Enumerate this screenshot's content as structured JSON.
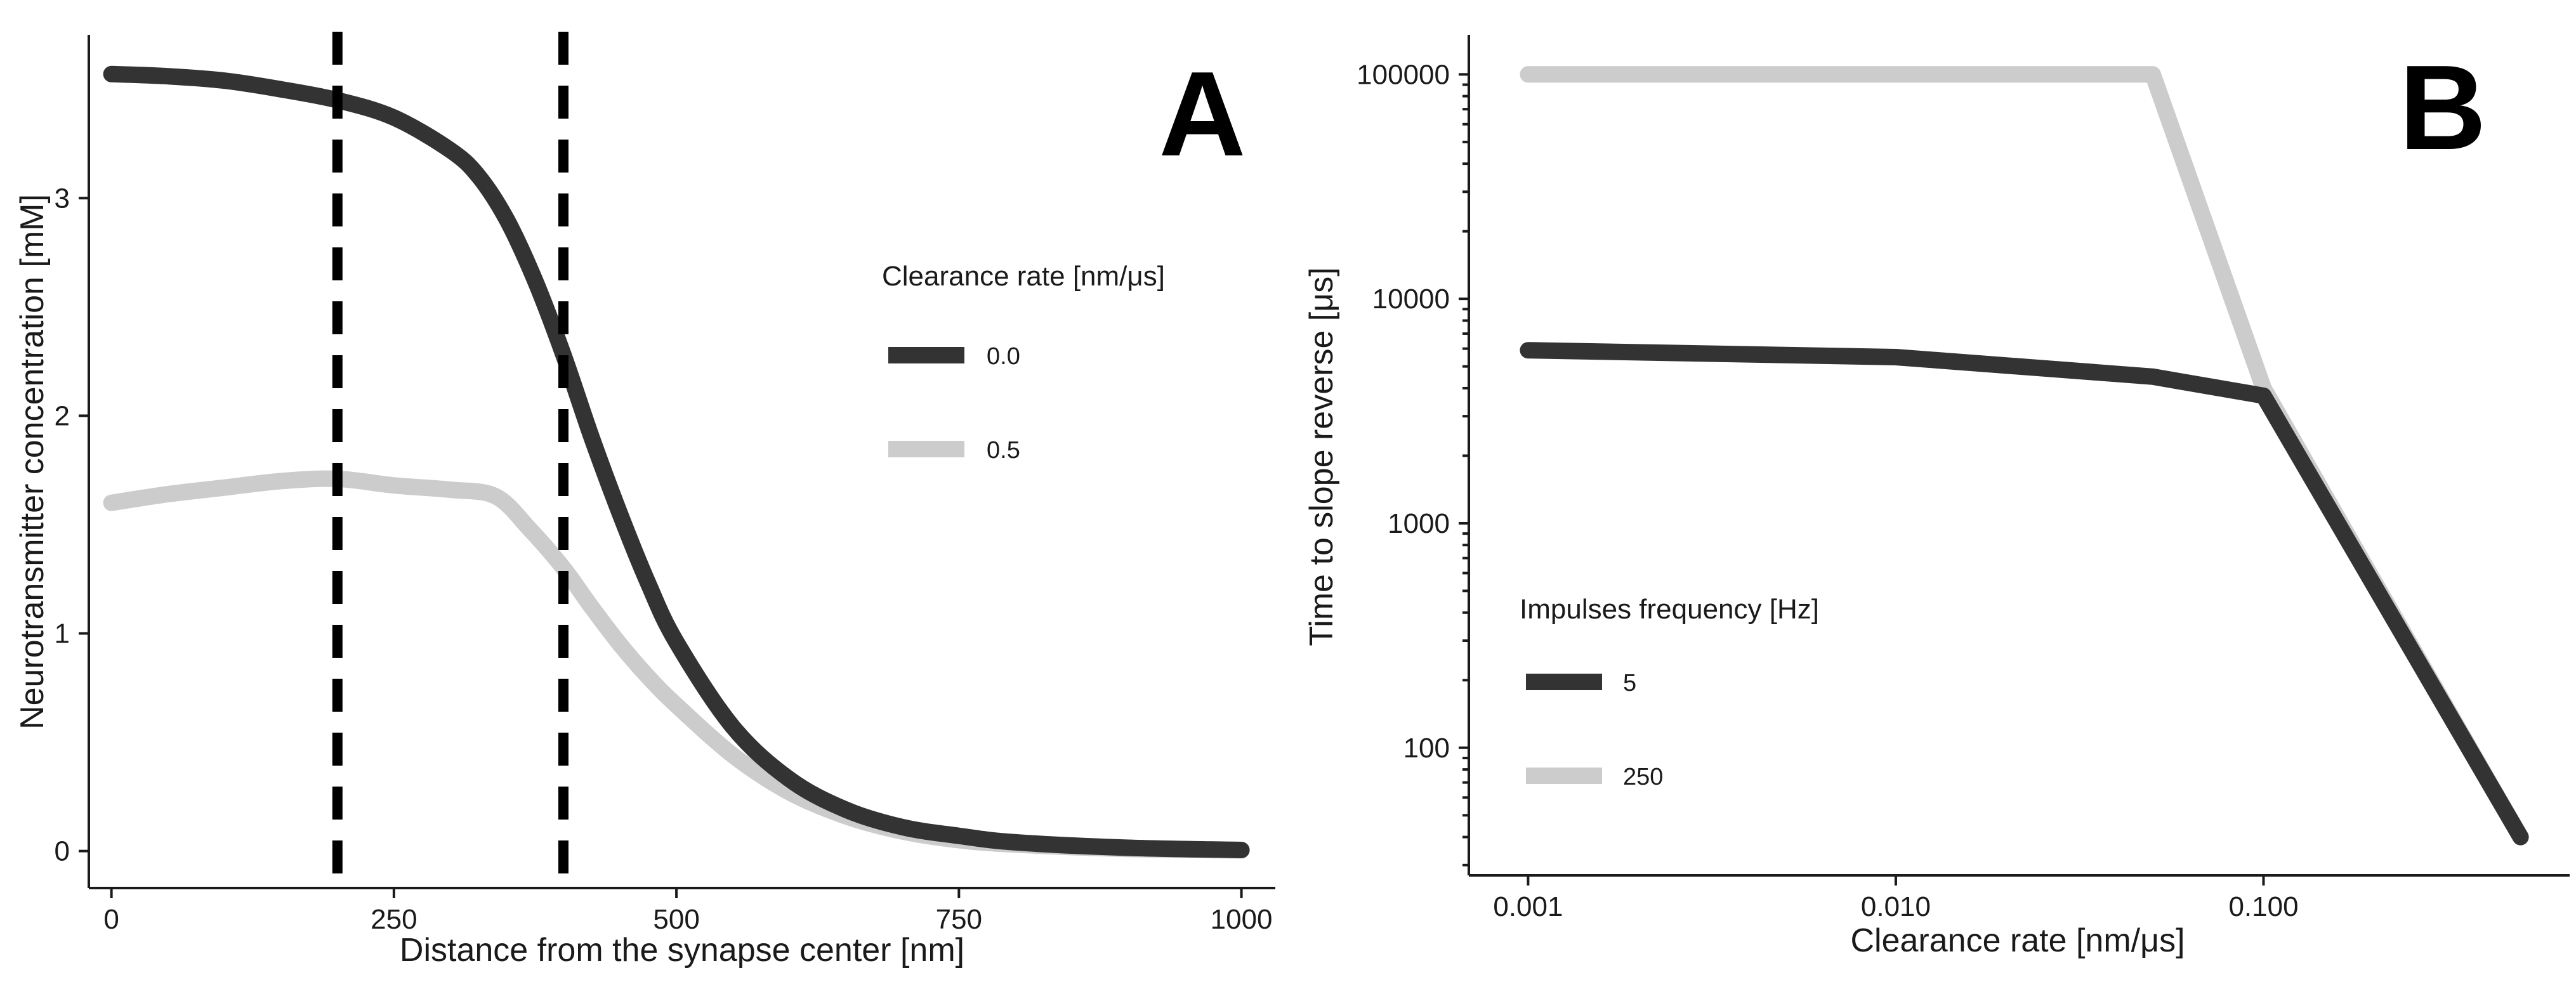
{
  "chart_data": [
    {
      "panel": "A",
      "type": "line",
      "title": "",
      "xlabel": "Distance from the synapse center [nm]",
      "ylabel": "Neurotransmitter concentration [mM]",
      "xlim": [
        -20,
        1030
      ],
      "ylim": [
        -0.17,
        3.75
      ],
      "xticks": [
        0,
        250,
        500,
        750,
        1000
      ],
      "xtick_labels": [
        "0",
        "250",
        "500",
        "750",
        "1000"
      ],
      "yticks": [
        0,
        1,
        2,
        3
      ],
      "ytick_labels": [
        "0",
        "1",
        "2",
        "3"
      ],
      "vlines": [
        200,
        400
      ],
      "legend": {
        "title": "Clearance rate [nm/μs]",
        "position": "right"
      },
      "series": [
        {
          "name": "0.0",
          "color": "#333333",
          "points": [
            [
              0,
              3.57
            ],
            [
              50,
              3.56
            ],
            [
              100,
              3.54
            ],
            [
              150,
              3.5
            ],
            [
              200,
              3.45
            ],
            [
              250,
              3.37
            ],
            [
              300,
              3.22
            ],
            [
              325,
              3.1
            ],
            [
              350,
              2.9
            ],
            [
              375,
              2.62
            ],
            [
              400,
              2.28
            ],
            [
              425,
              1.9
            ],
            [
              450,
              1.55
            ],
            [
              475,
              1.23
            ],
            [
              500,
              0.96
            ],
            [
              550,
              0.57
            ],
            [
              600,
              0.33
            ],
            [
              650,
              0.19
            ],
            [
              700,
              0.11
            ],
            [
              750,
              0.07
            ],
            [
              800,
              0.04
            ],
            [
              900,
              0.015
            ],
            [
              1000,
              0.005
            ]
          ]
        },
        {
          "name": "0.5",
          "color": "#cccccc",
          "points": [
            [
              0,
              1.6
            ],
            [
              50,
              1.64
            ],
            [
              100,
              1.67
            ],
            [
              150,
              1.7
            ],
            [
              200,
              1.71
            ],
            [
              250,
              1.68
            ],
            [
              300,
              1.66
            ],
            [
              340,
              1.63
            ],
            [
              370,
              1.48
            ],
            [
              400,
              1.3
            ],
            [
              425,
              1.12
            ],
            [
              450,
              0.95
            ],
            [
              475,
              0.8
            ],
            [
              500,
              0.67
            ],
            [
              550,
              0.44
            ],
            [
              600,
              0.27
            ],
            [
              650,
              0.16
            ],
            [
              700,
              0.09
            ],
            [
              750,
              0.05
            ],
            [
              800,
              0.03
            ],
            [
              900,
              0.01
            ],
            [
              1000,
              0.003
            ]
          ]
        }
      ]
    },
    {
      "panel": "B",
      "type": "line",
      "title": "",
      "xlabel": "Clearance rate [nm/μs]",
      "ylabel": "Time to slope reverse [μs]",
      "xscale": "log",
      "yscale": "log",
      "xlim": [
        0.00069,
        0.68
      ],
      "ylim": [
        27,
        150000
      ],
      "xticks": [
        0.001,
        0.01,
        0.1
      ],
      "xtick_labels": [
        "0.001",
        "0.010",
        "0.100"
      ],
      "yticks": [
        100,
        1000,
        10000,
        100000
      ],
      "ytick_labels": [
        "100",
        "1000",
        "10000",
        "100000"
      ],
      "legend": {
        "title": "Impulses frequency [Hz]",
        "position": "bottom-left"
      },
      "series": [
        {
          "name": "5",
          "color": "#333333",
          "points": [
            [
              0.001,
              5900
            ],
            [
              0.01,
              5500
            ],
            [
              0.05,
              4500
            ],
            [
              0.1,
              3700
            ],
            [
              0.5,
              40
            ]
          ]
        },
        {
          "name": "250",
          "color": "#cccccc",
          "points": [
            [
              0.001,
              100000
            ],
            [
              0.05,
              100000
            ],
            [
              0.1,
              4000
            ],
            [
              0.5,
              40
            ]
          ]
        }
      ]
    }
  ],
  "panels": {
    "a": {
      "letter": "A"
    },
    "b": {
      "letter": "B"
    }
  }
}
